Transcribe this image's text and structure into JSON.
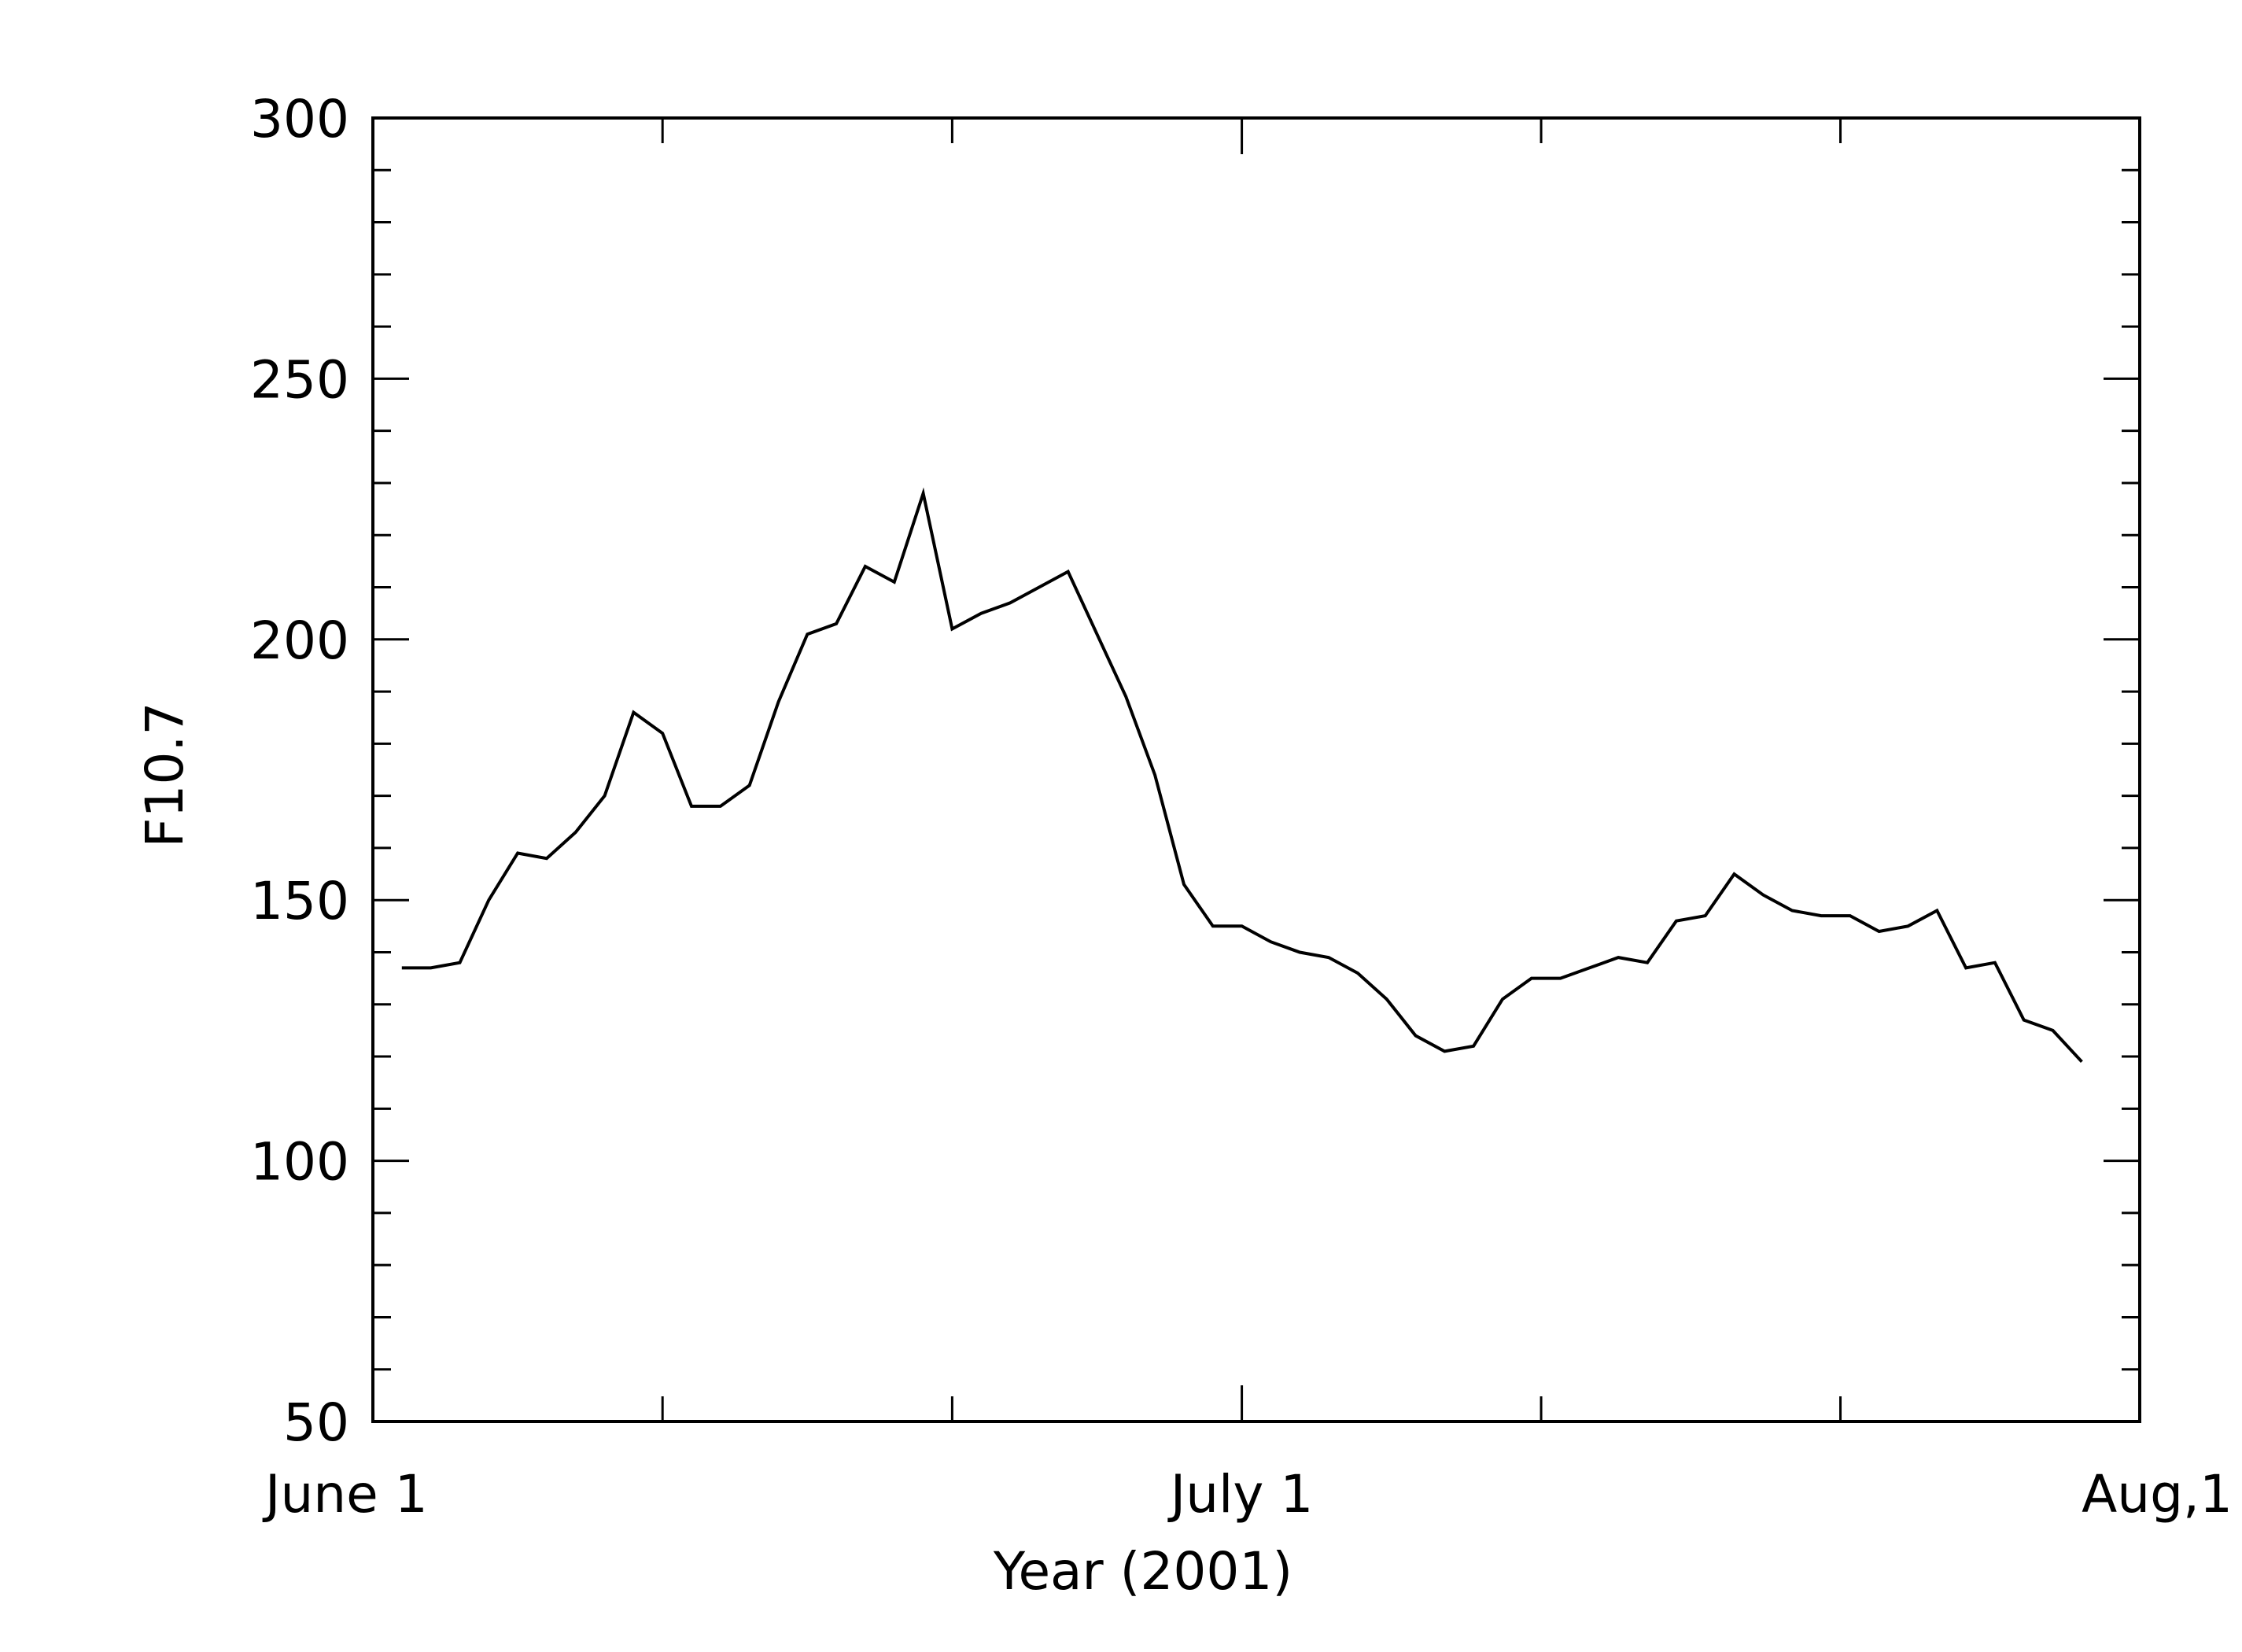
{
  "chart_data": {
    "type": "line",
    "title": "",
    "xlabel": "Year (2001)",
    "ylabel": "F10.7",
    "xlim": [
      "2001-06-01",
      "2001-08-01"
    ],
    "ylim": [
      50,
      300
    ],
    "grid": false,
    "x_ticks": [
      {
        "date": "2001-06-01",
        "label": "June 1"
      },
      {
        "date": "2001-07-01",
        "label": "July 1"
      },
      {
        "date": "2001-08-01",
        "label": "Aug,1"
      }
    ],
    "y_ticks": [
      {
        "value": 50,
        "label": "50"
      },
      {
        "value": 100,
        "label": "100"
      },
      {
        "value": 150,
        "label": "150"
      },
      {
        "value": 200,
        "label": "200"
      },
      {
        "value": 250,
        "label": "250"
      },
      {
        "value": 300,
        "label": "300"
      }
    ],
    "series": [
      {
        "name": "",
        "color": "#000000",
        "x": [
          "2001-06-02",
          "2001-06-03",
          "2001-06-04",
          "2001-06-05",
          "2001-06-06",
          "2001-06-07",
          "2001-06-08",
          "2001-06-09",
          "2001-06-10",
          "2001-06-11",
          "2001-06-12",
          "2001-06-13",
          "2001-06-14",
          "2001-06-15",
          "2001-06-16",
          "2001-06-17",
          "2001-06-18",
          "2001-06-19",
          "2001-06-20",
          "2001-06-21",
          "2001-06-22",
          "2001-06-23",
          "2001-06-24",
          "2001-06-25",
          "2001-06-26",
          "2001-06-27",
          "2001-06-28",
          "2001-06-29",
          "2001-06-30",
          "2001-07-01",
          "2001-07-02",
          "2001-07-03",
          "2001-07-04",
          "2001-07-05",
          "2001-07-06",
          "2001-07-07",
          "2001-07-08",
          "2001-07-09",
          "2001-07-10",
          "2001-07-11",
          "2001-07-12",
          "2001-07-13",
          "2001-07-14",
          "2001-07-15",
          "2001-07-16",
          "2001-07-17",
          "2001-07-18",
          "2001-07-19",
          "2001-07-20",
          "2001-07-21",
          "2001-07-22",
          "2001-07-23",
          "2001-07-24",
          "2001-07-25",
          "2001-07-26",
          "2001-07-27",
          "2001-07-28",
          "2001-07-29",
          "2001-07-30"
        ],
        "y": [
          137,
          137,
          138,
          150,
          159,
          158,
          163,
          170,
          186,
          182,
          168,
          168,
          172,
          188,
          201,
          203,
          214,
          211,
          228,
          202,
          205,
          207,
          210,
          213,
          201,
          189,
          174,
          153,
          145,
          145,
          142,
          140,
          139,
          136,
          131,
          124,
          121,
          122,
          131,
          135,
          135,
          137,
          139,
          138,
          146,
          147,
          155,
          151,
          148,
          147,
          147,
          144,
          145,
          148,
          137,
          138,
          127,
          125,
          119
        ]
      }
    ]
  }
}
